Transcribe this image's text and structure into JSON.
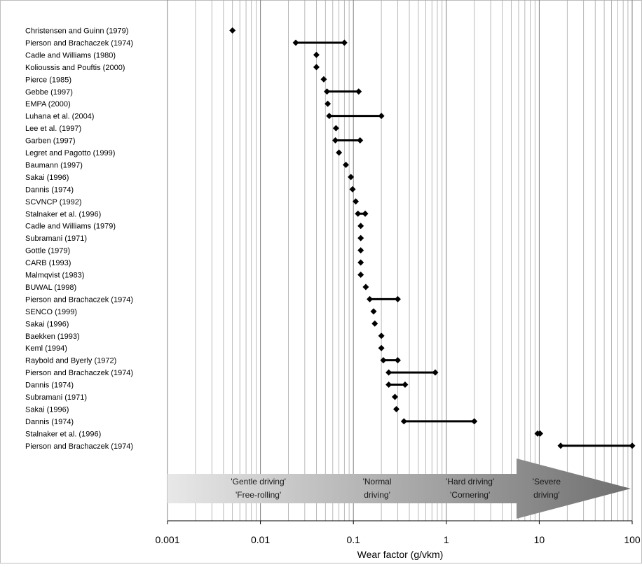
{
  "chart_data": {
    "type": "scatter",
    "xlabel": "Wear factor (g/vkm)",
    "xscale": "log",
    "xlim": [
      0.001,
      100
    ],
    "xticks": [
      "0.001",
      "0.01",
      "0.1",
      "1",
      "10",
      "100"
    ],
    "grid": "vertical log gridlines",
    "legend": "none",
    "marker_color": "#000000",
    "series": [
      {
        "label": "Christensen and Guinn (1979)",
        "min": 0.005,
        "max": 0.005
      },
      {
        "label": "Pierson and Brachaczek (1974)",
        "min": 0.024,
        "max": 0.08
      },
      {
        "label": "Cadle and Williams (1980)",
        "min": 0.04,
        "max": 0.04
      },
      {
        "label": "Kolioussis and Pouftis (2000)",
        "min": 0.04,
        "max": 0.04
      },
      {
        "label": "Pierce (1985)",
        "min": 0.048,
        "max": 0.048
      },
      {
        "label": "Gebbe (1997)",
        "min": 0.052,
        "max": 0.114
      },
      {
        "label": "EMPA (2000)",
        "min": 0.053,
        "max": 0.053
      },
      {
        "label": "Luhana et al. (2004)",
        "min": 0.055,
        "max": 0.2
      },
      {
        "label": "Lee et al. (1997)",
        "min": 0.065,
        "max": 0.065
      },
      {
        "label": "Garben (1997)",
        "min": 0.064,
        "max": 0.118
      },
      {
        "label": "Legret and Pagotto (1999)",
        "min": 0.07,
        "max": 0.07
      },
      {
        "label": "Baumann (1997)",
        "min": 0.083,
        "max": 0.083
      },
      {
        "label": "Sakai (1996)",
        "min": 0.094,
        "max": 0.094
      },
      {
        "label": "Dannis (1974)",
        "min": 0.098,
        "max": 0.098
      },
      {
        "label": "SCVNCP (1992)",
        "min": 0.106,
        "max": 0.106
      },
      {
        "label": "Stalnaker et al. (1996)",
        "min": 0.112,
        "max": 0.134
      },
      {
        "label": "Cadle and Williams (1979)",
        "min": 0.12,
        "max": 0.12
      },
      {
        "label": "Subramani (1971)",
        "min": 0.12,
        "max": 0.12
      },
      {
        "label": "Gottle (1979)",
        "min": 0.12,
        "max": 0.12
      },
      {
        "label": "CARB (1993)",
        "min": 0.12,
        "max": 0.12
      },
      {
        "label": "Malmqvist (1983)",
        "min": 0.12,
        "max": 0.12
      },
      {
        "label": "BUWAL (1998)",
        "min": 0.136,
        "max": 0.136
      },
      {
        "label": "Pierson and Brachaczek (1974)",
        "min": 0.15,
        "max": 0.3
      },
      {
        "label": "SENCO (1999)",
        "min": 0.165,
        "max": 0.165
      },
      {
        "label": "Sakai (1996)",
        "min": 0.17,
        "max": 0.17
      },
      {
        "label": "Baekken (1993)",
        "min": 0.2,
        "max": 0.2
      },
      {
        "label": "Keml (1994)",
        "min": 0.2,
        "max": 0.2
      },
      {
        "label": "Raybold and Byerly (1972)",
        "min": 0.21,
        "max": 0.3
      },
      {
        "label": "Pierson and Brachaczek (1974)",
        "min": 0.24,
        "max": 0.76
      },
      {
        "label": "Dannis (1974)",
        "min": 0.24,
        "max": 0.36
      },
      {
        "label": "Subramani (1971)",
        "min": 0.28,
        "max": 0.28
      },
      {
        "label": "Sakai (1996)",
        "min": 0.29,
        "max": 0.29
      },
      {
        "label": "Dannis (1974)",
        "min": 0.35,
        "max": 2.0
      },
      {
        "label": "Stalnaker et al. (1996)",
        "min": 9.6,
        "max": 10.2
      },
      {
        "label": "Pierson and Brachaczek (1974)",
        "min": 17,
        "max": 100
      }
    ],
    "annotations": [
      {
        "line1": "'Gentle driving'",
        "line2": "'Free-rolling'",
        "x": 0.0095
      },
      {
        "line1": "'Normal",
        "line2": "driving'",
        "x": 0.18
      },
      {
        "line1": "'Hard driving'",
        "line2": "'Cornering'",
        "x": 1.8
      },
      {
        "line1": "'Severe",
        "line2": "driving'",
        "x": 12
      }
    ],
    "arrow_colors": {
      "start": "#e8e8e8",
      "end": "#6f6f6f"
    }
  }
}
